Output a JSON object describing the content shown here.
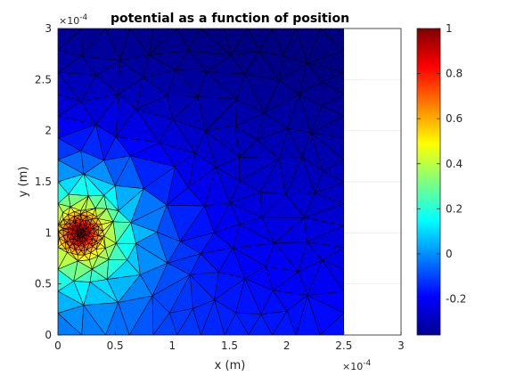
{
  "chart_data": {
    "type": "heatmap",
    "title": "potential as a function of position",
    "xlabel": "x (m)",
    "ylabel": "y (m)",
    "xlim": [
      0,
      0.0003
    ],
    "ylim": [
      0,
      0.0003
    ],
    "x_ticks": [
      "0",
      "0.5",
      "1",
      "1.5",
      "2",
      "2.5",
      "3"
    ],
    "y_ticks": [
      "0",
      "0.5",
      "1",
      "1.5",
      "2",
      "2.5",
      "3"
    ],
    "x_multiplier": "×10",
    "x_exponent": "-4",
    "y_multiplier": "×10",
    "y_exponent": "-4",
    "grid": true,
    "mesh": "triangular finite-element mesh",
    "domain_extent": {
      "x": [
        0,
        0.00025
      ],
      "y": [
        0,
        0.0003
      ]
    },
    "source_point": {
      "x": 2e-05,
      "y": 0.0001,
      "value": 1.0
    },
    "colorbar": {
      "colormap": "jet",
      "range": [
        -0.36,
        1.0
      ],
      "ticks": [
        "1",
        "0.8",
        "0.6",
        "0.4",
        "0.2",
        "0",
        "-0.2"
      ],
      "placement": "right"
    }
  }
}
